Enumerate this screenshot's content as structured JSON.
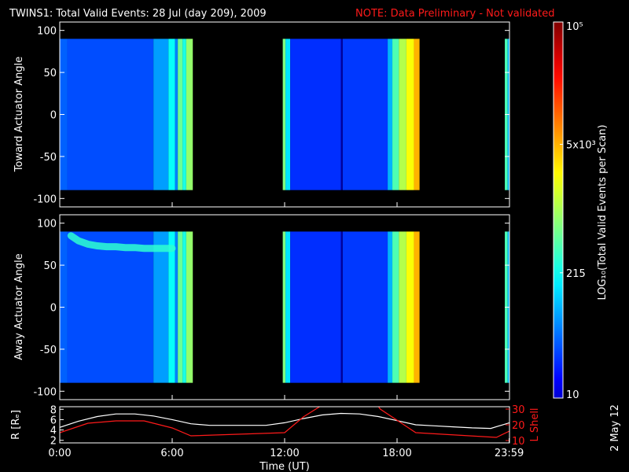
{
  "title": "TWINS1: Total Valid Events: 28 Jul (day 209), 2009",
  "note": "NOTE: Data Preliminary - Not validated",
  "date_stamp": "2 May 12",
  "colors": {
    "note": "#ff1a1a",
    "rline": "#ffffff",
    "lshell": "#ff1a1a"
  },
  "chart_data": [
    {
      "type": "heatmap",
      "ylabel": "Toward Actuator Angle",
      "ylim": [
        -110,
        110
      ],
      "yticks": [
        100,
        50,
        0,
        -50,
        -100
      ],
      "xlim": [
        0,
        24
      ],
      "angle_range": [
        -90,
        90
      ],
      "data_segments": [
        [
          0,
          7.1
        ],
        [
          11.9,
          19.2
        ],
        [
          23.75,
          24
        ]
      ],
      "bands": [
        {
          "t0": 0.0,
          "t1": 0.4,
          "level": 0.22
        },
        {
          "t0": 0.4,
          "t1": 5.0,
          "level": 0.2
        },
        {
          "t0": 5.0,
          "t1": 5.8,
          "level": 0.28
        },
        {
          "t0": 5.8,
          "t1": 6.15,
          "level": 0.38
        },
        {
          "t0": 6.15,
          "t1": 6.3,
          "level": 0.25
        },
        {
          "t0": 6.3,
          "t1": 6.55,
          "level": 0.48
        },
        {
          "t0": 6.55,
          "t1": 6.75,
          "level": 0.4
        },
        {
          "t0": 6.75,
          "t1": 7.1,
          "level": 0.52
        },
        {
          "t0": 11.9,
          "t1": 12.05,
          "level": 0.5
        },
        {
          "t0": 12.05,
          "t1": 12.3,
          "level": 0.35
        },
        {
          "t0": 12.3,
          "t1": 15.0,
          "level": 0.17
        },
        {
          "t0": 15.0,
          "t1": 15.1,
          "level": 0.03
        },
        {
          "t0": 15.1,
          "t1": 17.5,
          "level": 0.18
        },
        {
          "t0": 17.5,
          "t1": 17.75,
          "level": 0.3
        },
        {
          "t0": 17.75,
          "t1": 18.1,
          "level": 0.45
        },
        {
          "t0": 18.1,
          "t1": 18.5,
          "level": 0.55
        },
        {
          "t0": 18.5,
          "t1": 18.9,
          "level": 0.62
        },
        {
          "t0": 18.9,
          "t1": 19.2,
          "level": 0.7
        },
        {
          "t0": 23.75,
          "t1": 23.9,
          "level": 0.45
        },
        {
          "t0": 23.9,
          "t1": 24.0,
          "level": 0.3
        }
      ]
    },
    {
      "type": "heatmap",
      "ylabel": "Away Actuator Angle",
      "ylim": [
        -110,
        110
      ],
      "yticks": [
        100,
        50,
        0,
        -50,
        -100
      ],
      "xlim": [
        0,
        24
      ],
      "angle_range": [
        -90,
        90
      ],
      "data_segments": [
        [
          0,
          7.1
        ],
        [
          11.9,
          19.2
        ],
        [
          23.75,
          24
        ]
      ],
      "bands": [
        {
          "t0": 0.0,
          "t1": 0.4,
          "level": 0.22
        },
        {
          "t0": 0.4,
          "t1": 5.0,
          "level": 0.2
        },
        {
          "t0": 5.0,
          "t1": 5.8,
          "level": 0.28
        },
        {
          "t0": 5.8,
          "t1": 6.15,
          "level": 0.38
        },
        {
          "t0": 6.15,
          "t1": 6.3,
          "level": 0.25
        },
        {
          "t0": 6.3,
          "t1": 6.55,
          "level": 0.48
        },
        {
          "t0": 6.55,
          "t1": 6.75,
          "level": 0.4
        },
        {
          "t0": 6.75,
          "t1": 7.1,
          "level": 0.52
        },
        {
          "t0": 11.9,
          "t1": 12.05,
          "level": 0.5
        },
        {
          "t0": 12.05,
          "t1": 12.3,
          "level": 0.35
        },
        {
          "t0": 12.3,
          "t1": 15.0,
          "level": 0.17
        },
        {
          "t0": 15.0,
          "t1": 15.1,
          "level": 0.03
        },
        {
          "t0": 15.1,
          "t1": 17.5,
          "level": 0.18
        },
        {
          "t0": 17.5,
          "t1": 17.75,
          "level": 0.3
        },
        {
          "t0": 17.75,
          "t1": 18.1,
          "level": 0.45
        },
        {
          "t0": 18.1,
          "t1": 18.5,
          "level": 0.55
        },
        {
          "t0": 18.5,
          "t1": 18.9,
          "level": 0.62
        },
        {
          "t0": 18.9,
          "t1": 19.2,
          "level": 0.7
        },
        {
          "t0": 23.75,
          "t1": 23.9,
          "level": 0.45
        },
        {
          "t0": 23.9,
          "t1": 24.0,
          "level": 0.3
        }
      ],
      "feature": {
        "t": [
          0.6,
          1.0,
          1.5,
          2.0,
          2.5,
          3.0,
          3.5,
          4.0,
          4.5,
          5.0,
          5.5,
          6.0
        ],
        "angle": [
          85,
          79,
          75,
          73,
          72,
          72,
          71,
          71,
          70,
          70,
          70,
          70
        ],
        "level": 0.42
      }
    },
    {
      "type": "line",
      "xlabel": "Time (UT)",
      "ylabel": "R [Rₑ]",
      "y2label": "L Shell",
      "xlim": [
        0,
        24
      ],
      "ylim": [
        1.5,
        8.5
      ],
      "yticks": [
        2,
        4,
        6,
        8
      ],
      "y2lim": [
        10,
        30
      ],
      "y2ticks": [
        10,
        20,
        30
      ],
      "xticks": [
        0,
        6,
        12,
        18,
        23.983
      ],
      "xtick_labels": [
        "0:00",
        "6:00",
        "12:00",
        "18:00",
        "23:59"
      ],
      "series": [
        {
          "name": "R",
          "x": [
            0,
            1,
            2,
            3,
            4,
            5,
            6,
            7,
            8,
            9,
            10,
            11,
            12,
            13,
            14,
            15,
            16,
            17,
            18,
            19,
            20,
            21,
            22,
            23,
            24
          ],
          "y": [
            4.5,
            5.7,
            6.6,
            7.1,
            7.1,
            6.7,
            6.0,
            5.2,
            4.9,
            4.9,
            4.9,
            4.9,
            5.4,
            6.2,
            6.9,
            7.2,
            7.1,
            6.6,
            5.8,
            5.0,
            4.8,
            4.6,
            4.4,
            4.3,
            5.4
          ]
        },
        {
          "name": "L Shell",
          "x": [
            0,
            1.5,
            3,
            4.5,
            6,
            7,
            12,
            13,
            15,
            16.5,
            17.1,
            19,
            23.3,
            24
          ],
          "y": [
            15,
            21,
            22.5,
            22.5,
            18,
            13,
            15,
            25,
            40,
            40,
            30,
            15,
            12,
            16
          ]
        }
      ]
    }
  ],
  "colorbar": {
    "ylabel": "LOG₁₀(Total Valid Events per Scan)",
    "scale": "log",
    "range": [
      10,
      100000
    ],
    "tick_labels": [
      {
        "value": 10,
        "text": "10"
      },
      {
        "value": 215,
        "text": "215"
      },
      {
        "value": 5000,
        "text": "5x10³"
      },
      {
        "value": 100000,
        "text": "10⁵"
      }
    ]
  }
}
